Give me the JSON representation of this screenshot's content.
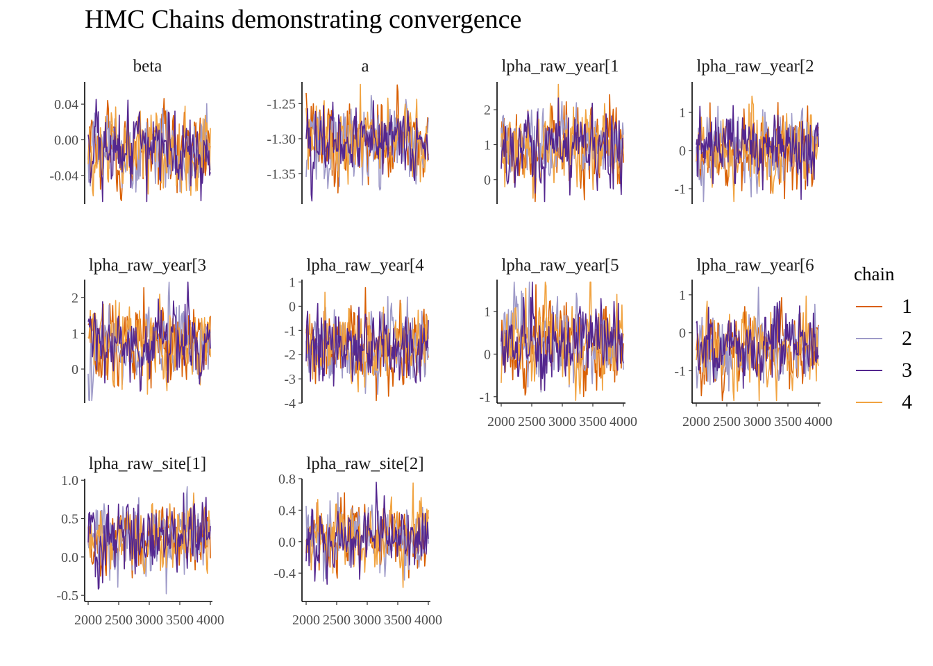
{
  "title": "HMC Chains demonstrating convergence",
  "legend": {
    "title": "chain",
    "items": [
      {
        "label": "1",
        "color": "#d95f02"
      },
      {
        "label": "2",
        "color": "#9e9ac8"
      },
      {
        "label": "3",
        "color": "#54278f"
      },
      {
        "label": "4",
        "color": "#f1a340"
      }
    ]
  },
  "chart_data": {
    "type": "line",
    "title": "HMC Chains demonstrating convergence",
    "x_range": [
      2000,
      4000
    ],
    "x_ticks": [
      2000,
      2500,
      3000,
      3500,
      4000
    ],
    "x_tick_labels": [
      "2000",
      "2500",
      "3000",
      "3500",
      "4000"
    ],
    "series_names": [
      "1",
      "2",
      "3",
      "4"
    ],
    "panels": [
      {
        "label": "beta",
        "ylim": [
          -0.072,
          0.065
        ],
        "yticks": [
          -0.04,
          0.0,
          0.04
        ],
        "ytick_labels": [
          "-0.04",
          "0.00",
          "0.04"
        ],
        "center": -0.012,
        "spread": 0.042,
        "show_x_axis": false
      },
      {
        "label": "a",
        "ylim": [
          -1.393,
          -1.219
        ],
        "yticks": [
          -1.35,
          -1.3,
          -1.25
        ],
        "ytick_labels": [
          "-1.35",
          "-1.30",
          "-1.25"
        ],
        "center": -1.302,
        "spread": 0.052,
        "show_x_axis": false
      },
      {
        "label": "lpha_raw_year[1",
        "ylim": [
          -0.7,
          2.8
        ],
        "yticks": [
          0,
          1,
          2
        ],
        "ytick_labels": [
          "0",
          "1",
          "2"
        ],
        "center": 0.95,
        "spread": 1.05,
        "show_x_axis": false
      },
      {
        "label": "lpha_raw_year[2",
        "ylim": [
          -1.4,
          1.8
        ],
        "yticks": [
          -1,
          0,
          1
        ],
        "ytick_labels": [
          "-1",
          "0",
          "1"
        ],
        "center": 0.0,
        "spread": 0.95,
        "show_x_axis": false
      },
      {
        "label": "lpha_raw_year[3",
        "ylim": [
          -0.95,
          2.5
        ],
        "yticks": [
          0,
          1,
          2
        ],
        "ytick_labels": [
          "0",
          "1",
          "2"
        ],
        "center": 0.75,
        "spread": 1.0,
        "show_x_axis": false
      },
      {
        "label": "lpha_raw_year[4",
        "ylim": [
          -4.0,
          1.1
        ],
        "yticks": [
          -4,
          -3,
          -2,
          -1,
          0,
          1
        ],
        "ytick_labels": [
          "-4",
          "-3",
          "-2",
          "-1",
          "0",
          "1"
        ],
        "center": -1.6,
        "spread": 1.5,
        "show_x_axis": false
      },
      {
        "label": "lpha_raw_year[5",
        "ylim": [
          -1.15,
          1.75
        ],
        "yticks": [
          -1,
          0,
          1
        ],
        "ytick_labels": [
          "-1",
          "0",
          "1"
        ],
        "center": 0.3,
        "spread": 0.9,
        "show_x_axis": true
      },
      {
        "label": "lpha_raw_year[6",
        "ylim": [
          -1.85,
          1.4
        ],
        "yticks": [
          -1,
          0,
          1
        ],
        "ytick_labels": [
          "-1",
          "0",
          "1"
        ],
        "center": -0.4,
        "spread": 0.95,
        "show_x_axis": true
      },
      {
        "label": "lpha_raw_site[1]",
        "ylim": [
          -0.58,
          1.02
        ],
        "yticks": [
          -0.5,
          0.0,
          0.5,
          1.0
        ],
        "ytick_labels": [
          "-0.5",
          "0.0",
          "0.5",
          "1.0"
        ],
        "center": 0.25,
        "spread": 0.42,
        "show_x_axis": true
      },
      {
        "label": "lpha_raw_site[2]",
        "ylim": [
          -0.76,
          0.8
        ],
        "yticks": [
          -0.4,
          0.0,
          0.4,
          0.8
        ],
        "ytick_labels": [
          "-0.4",
          "0.0",
          "0.4",
          "0.8"
        ],
        "center": 0.05,
        "spread": 0.42,
        "show_x_axis": true
      }
    ]
  }
}
